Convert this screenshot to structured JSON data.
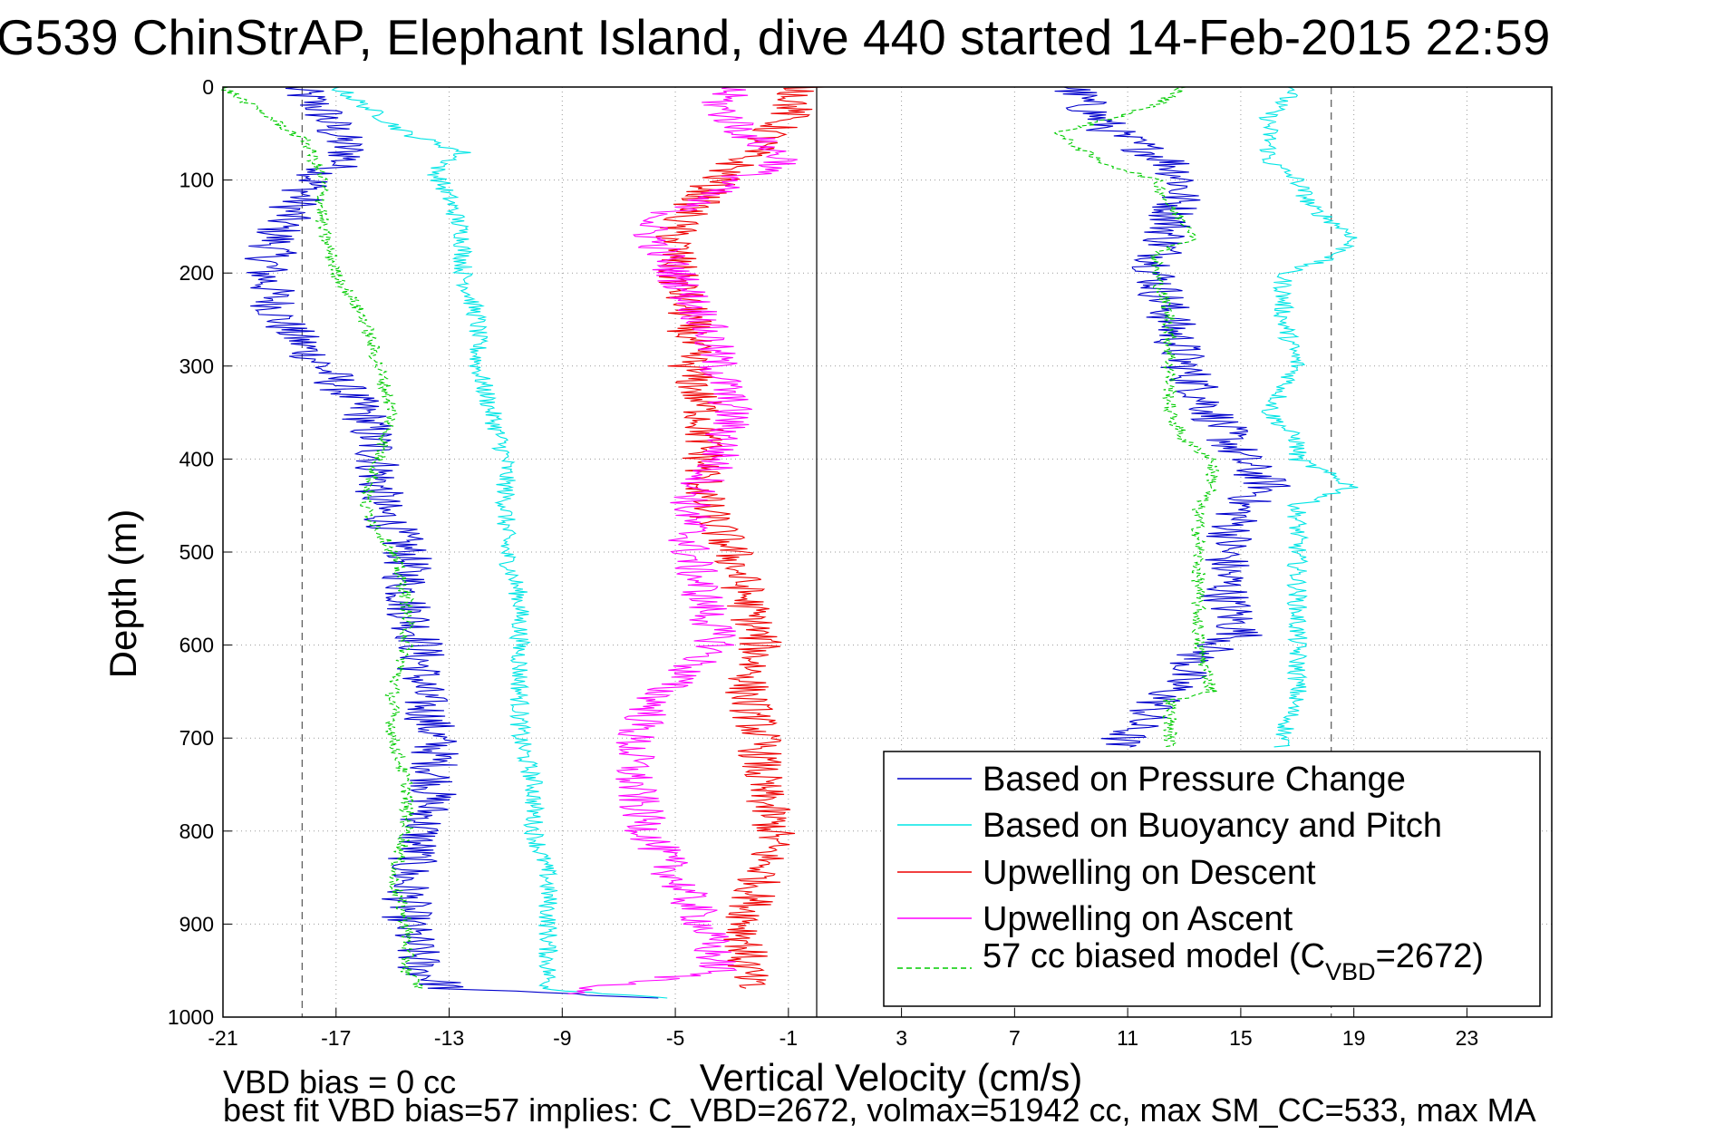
{
  "chart_data": {
    "type": "line",
    "title": "G539 ChinStrAP, Elephant Island, dive 440 started 14-Feb-2015 22:59",
    "xlabel": "Vertical Velocity (cm/s)",
    "ylabel": "Depth (m)",
    "xlim": [
      -21,
      26
    ],
    "ylim": [
      0,
      1000
    ],
    "y_reversed": true,
    "xticks": [
      -21,
      -17,
      -13,
      -9,
      -5,
      -1,
      3,
      7,
      11,
      15,
      19,
      23
    ],
    "yticks": [
      0,
      100,
      200,
      300,
      400,
      500,
      600,
      700,
      800,
      900,
      1000
    ],
    "grid": true,
    "legend_position": "bottom-right",
    "reference_lines": [
      {
        "x": 0,
        "style": "solid"
      },
      {
        "x": -18.2,
        "style": "dashed"
      },
      {
        "x": 18.2,
        "style": "dashed"
      }
    ],
    "series": [
      {
        "name": "Based on Pressure Change",
        "color": "#0000cc",
        "dash": "solid",
        "noise": 0.9,
        "profiles": [
          {
            "depth": [
              0,
              25,
              50,
              75,
              100,
              150,
              200,
              250,
              300,
              350,
              400,
              450,
              500,
              550,
              600,
              650,
              700,
              750,
              800,
              850,
              900,
              950,
              970,
              980
            ],
            "x": [
              -18.5,
              -17.5,
              -17.0,
              -16.5,
              -17.8,
              -19.0,
              -19.5,
              -19.0,
              -17.5,
              -16.0,
              -15.5,
              -15.5,
              -14.5,
              -14.5,
              -14.0,
              -14.0,
              -13.5,
              -13.5,
              -14.0,
              -14.5,
              -14.5,
              -14.0,
              -13.0,
              -5.0
            ]
          },
          {
            "depth": [
              0,
              20,
              50,
              80,
              100,
              150,
              200,
              250,
              300,
              350,
              400,
              430,
              450,
              500,
              550,
              590,
              610,
              650,
              680,
              710
            ],
            "x": [
              9.0,
              9.5,
              10.5,
              12.5,
              13.0,
              12.5,
              12.0,
              12.5,
              13.0,
              14.0,
              15.0,
              16.0,
              15.0,
              14.5,
              14.5,
              15.0,
              13.5,
              12.5,
              11.5,
              10.5
            ]
          }
        ]
      },
      {
        "name": "Based on Buoyancy and Pitch",
        "color": "#00e5e5",
        "dash": "solid",
        "noise": 0.35,
        "profiles": [
          {
            "depth": [
              0,
              20,
              50,
              70,
              90,
              120,
              160,
              200,
              250,
              300,
              350,
              400,
              450,
              500,
              550,
              600,
              650,
              700,
              750,
              800,
              850,
              900,
              950,
              970,
              980
            ],
            "x": [
              -17.0,
              -16.0,
              -14.5,
              -12.5,
              -13.5,
              -13.0,
              -12.5,
              -12.5,
              -12.0,
              -12.0,
              -11.5,
              -11.0,
              -11.0,
              -11.0,
              -10.5,
              -10.5,
              -10.5,
              -10.5,
              -10.0,
              -10.0,
              -9.5,
              -9.5,
              -9.5,
              -9.5,
              -5.0
            ]
          },
          {
            "depth": [
              0,
              30,
              60,
              80,
              100,
              130,
              160,
              180,
              200,
              250,
              300,
              350,
              380,
              400,
              430,
              450,
              500,
              550,
              600,
              650,
              700,
              710
            ],
            "x": [
              17.0,
              16.0,
              16.0,
              16.0,
              17.0,
              17.5,
              19.0,
              18.5,
              16.5,
              16.5,
              17.0,
              16.0,
              17.0,
              17.0,
              19.0,
              17.0,
              17.0,
              17.0,
              17.0,
              17.0,
              16.5,
              16.5
            ]
          }
        ]
      },
      {
        "name": "Upwelling on Descent",
        "color": "#ee0000",
        "dash": "solid",
        "noise": 0.8,
        "profiles": [
          {
            "depth": [
              0,
              30,
              60,
              100,
              150,
              200,
              250,
              300,
              350,
              400,
              450,
              500,
              550,
              600,
              650,
              700,
              750,
              800,
              850,
              900,
              950,
              970
            ],
            "x": [
              -0.5,
              -1.0,
              -2.0,
              -3.5,
              -5.0,
              -5.0,
              -4.5,
              -4.5,
              -4.0,
              -4.0,
              -4.0,
              -3.0,
              -2.5,
              -2.0,
              -2.5,
              -2.0,
              -2.0,
              -1.5,
              -2.0,
              -2.5,
              -2.5,
              -2.5
            ]
          }
        ]
      },
      {
        "name": "Upwelling on Ascent",
        "color": "#ff00ff",
        "dash": "solid",
        "noise": 0.8,
        "profiles": [
          {
            "depth": [
              0,
              20,
              50,
              80,
              100,
              150,
              200,
              250,
              300,
              350,
              400,
              450,
              500,
              550,
              600,
              650,
              700,
              750,
              800,
              850,
              900,
              950,
              975
            ],
            "x": [
              -3.0,
              -3.5,
              -2.5,
              -1.0,
              -3.0,
              -6.0,
              -5.0,
              -4.0,
              -3.5,
              -3.0,
              -3.5,
              -4.5,
              -4.5,
              -4.0,
              -3.5,
              -5.5,
              -6.5,
              -6.5,
              -6.0,
              -5.0,
              -4.0,
              -3.5,
              -9.0
            ]
          }
        ]
      },
      {
        "name": "57 cc biased model (C_VBD=2672)",
        "color": "#00cc00",
        "dash": "dashed",
        "noise": 0.25,
        "profiles": [
          {
            "depth": [
              0,
              30,
              60,
              100,
              150,
              200,
              250,
              300,
              350,
              400,
              450,
              500,
              550,
              600,
              650,
              700,
              750,
              800,
              850,
              900,
              950,
              970
            ],
            "x": [
              -21.0,
              -19.5,
              -18.0,
              -17.5,
              -17.5,
              -17.0,
              -16.0,
              -15.5,
              -15.0,
              -15.5,
              -16.0,
              -15.0,
              -14.5,
              -14.5,
              -15.0,
              -15.0,
              -14.5,
              -14.5,
              -15.0,
              -14.5,
              -14.5,
              -14.0
            ]
          },
          {
            "depth": [
              0,
              20,
              50,
              80,
              100,
              130,
              160,
              180,
              200,
              250,
              300,
              350,
              380,
              400,
              430,
              450,
              500,
              550,
              600,
              650,
              660,
              700,
              710
            ],
            "x": [
              13.0,
              12.0,
              8.5,
              10.0,
              12.0,
              12.5,
              13.5,
              12.0,
              12.0,
              12.5,
              12.5,
              12.5,
              13.0,
              14.0,
              14.0,
              13.5,
              13.5,
              13.5,
              13.5,
              14.0,
              12.5,
              12.5,
              12.5
            ]
          }
        ]
      }
    ],
    "legend": [
      {
        "label": "Based on Pressure Change",
        "color": "#0000cc",
        "dash": "solid"
      },
      {
        "label": "Based on Buoyancy and Pitch",
        "color": "#00e5e5",
        "dash": "solid"
      },
      {
        "label": "Upwelling on Descent",
        "color": "#ee0000",
        "dash": "solid"
      },
      {
        "label": "Upwelling on Ascent",
        "color": "#ff00ff",
        "dash": "solid"
      },
      {
        "label_main": "57 cc biased model (C",
        "label_sub": "VBD",
        "label_end": "=2672)",
        "color": "#00cc00",
        "dash": "dashed"
      }
    ],
    "annotations": [
      "VBD bias = 0 cc",
      "best fit VBD bias=57 implies: C_VBD=2672, volmax=51942 cc, max SM_CC=533, max MA"
    ]
  }
}
